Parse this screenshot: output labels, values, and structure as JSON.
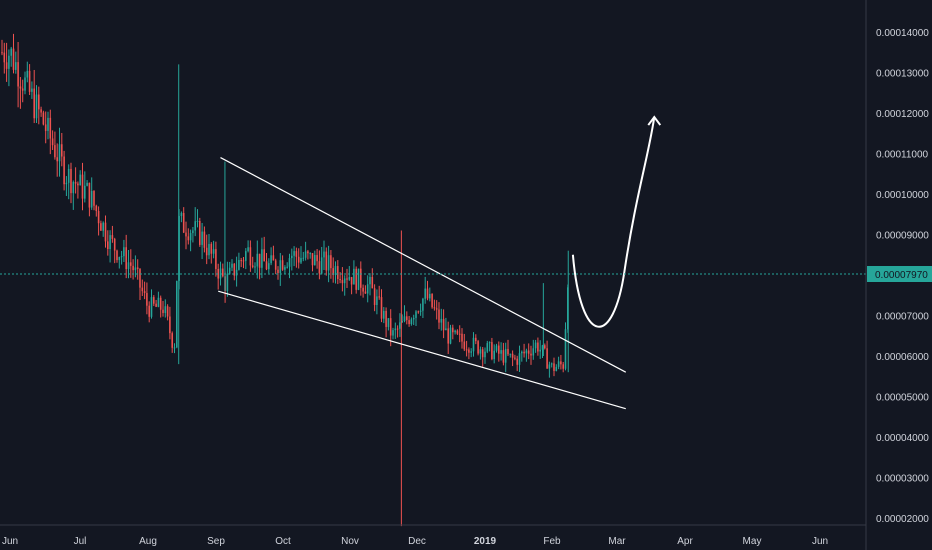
{
  "chart_data": {
    "type": "candlestick",
    "title": "",
    "xlabel": "",
    "ylabel": "",
    "ylim": [
      1.8e-06,
      1.48e-05
    ],
    "grid": false,
    "x_ticks": [
      "Jun",
      "Jul",
      "Aug",
      "Sep",
      "Oct",
      "Nov",
      "Dec",
      "2019",
      "Feb",
      "Mar",
      "Apr",
      "May",
      "Jun"
    ],
    "y_ticks": [
      "0.00014000",
      "0.00013000",
      "0.00012000",
      "0.00011000",
      "0.00010000",
      "0.00009000",
      "0.00007000",
      "0.00006000",
      "0.00005000",
      "0.00004000",
      "0.00003000",
      "0.00002000"
    ],
    "current_price": {
      "label": "0.00007970",
      "value": 7.97e-06
    },
    "colors": {
      "up": "#26a69a",
      "down": "#ef5350",
      "pattern_lines": "#ffffff",
      "current_price": "#26a69a",
      "background": "#131722"
    },
    "weekly_closes": [
      {
        "date": "2018-06-01",
        "close": 1.35e-05
      },
      {
        "date": "2018-06-15",
        "close": 1.18e-05
      },
      {
        "date": "2018-06-25",
        "close": 1.05e-05
      },
      {
        "date": "2018-07-05",
        "close": 1e-05
      },
      {
        "date": "2018-07-15",
        "close": 8.8e-06
      },
      {
        "date": "2018-07-25",
        "close": 8.2e-06
      },
      {
        "date": "2018-08-01",
        "close": 7.2e-06
      },
      {
        "date": "2018-08-08",
        "close": 7.2e-06
      },
      {
        "date": "2018-08-13",
        "close": 6.2e-06
      },
      {
        "date": "2018-08-15",
        "close": 9.3e-06
      },
      {
        "date": "2018-08-25",
        "close": 9e-06
      },
      {
        "date": "2018-09-05",
        "close": 7.8e-06
      },
      {
        "date": "2018-09-15",
        "close": 8.6e-06
      },
      {
        "date": "2018-09-25",
        "close": 8.2e-06
      },
      {
        "date": "2018-10-05",
        "close": 8.5e-06
      },
      {
        "date": "2018-10-20",
        "close": 8.3e-06
      },
      {
        "date": "2018-11-01",
        "close": 8e-06
      },
      {
        "date": "2018-11-10",
        "close": 7.7e-06
      },
      {
        "date": "2018-11-20",
        "close": 6.5e-06
      },
      {
        "date": "2018-11-28",
        "close": 7e-06
      },
      {
        "date": "2018-12-05",
        "close": 7.5e-06
      },
      {
        "date": "2018-12-15",
        "close": 6.5e-06
      },
      {
        "date": "2018-12-25",
        "close": 6.3e-06
      },
      {
        "date": "2019-01-05",
        "close": 6.1e-06
      },
      {
        "date": "2019-01-15",
        "close": 5.9e-06
      },
      {
        "date": "2019-01-25",
        "close": 6.3e-06
      },
      {
        "date": "2019-02-01",
        "close": 5.7e-06
      },
      {
        "date": "2019-02-06",
        "close": 5.8e-06
      },
      {
        "date": "2019-02-08",
        "close": 8.2e-06
      }
    ],
    "pattern": {
      "type": "falling wedge",
      "upper_line": [
        {
          "date": "2018-09-03",
          "value": 1.09e-05
        },
        {
          "date": "2019-03-05",
          "value": 5.6e-06
        }
      ],
      "lower_line": [
        {
          "date": "2018-09-02",
          "value": 7.6e-06
        },
        {
          "date": "2019-03-05",
          "value": 4.7e-06
        }
      ],
      "projection_arrow": [
        {
          "date": "2019-02-10",
          "value": 8.5e-06
        },
        {
          "date": "2019-02-23",
          "value": 6.7e-06
        },
        {
          "date": "2019-03-08",
          "value": 8.2e-06
        },
        {
          "date": "2019-03-18",
          "value": 1.19e-05
        }
      ]
    }
  }
}
